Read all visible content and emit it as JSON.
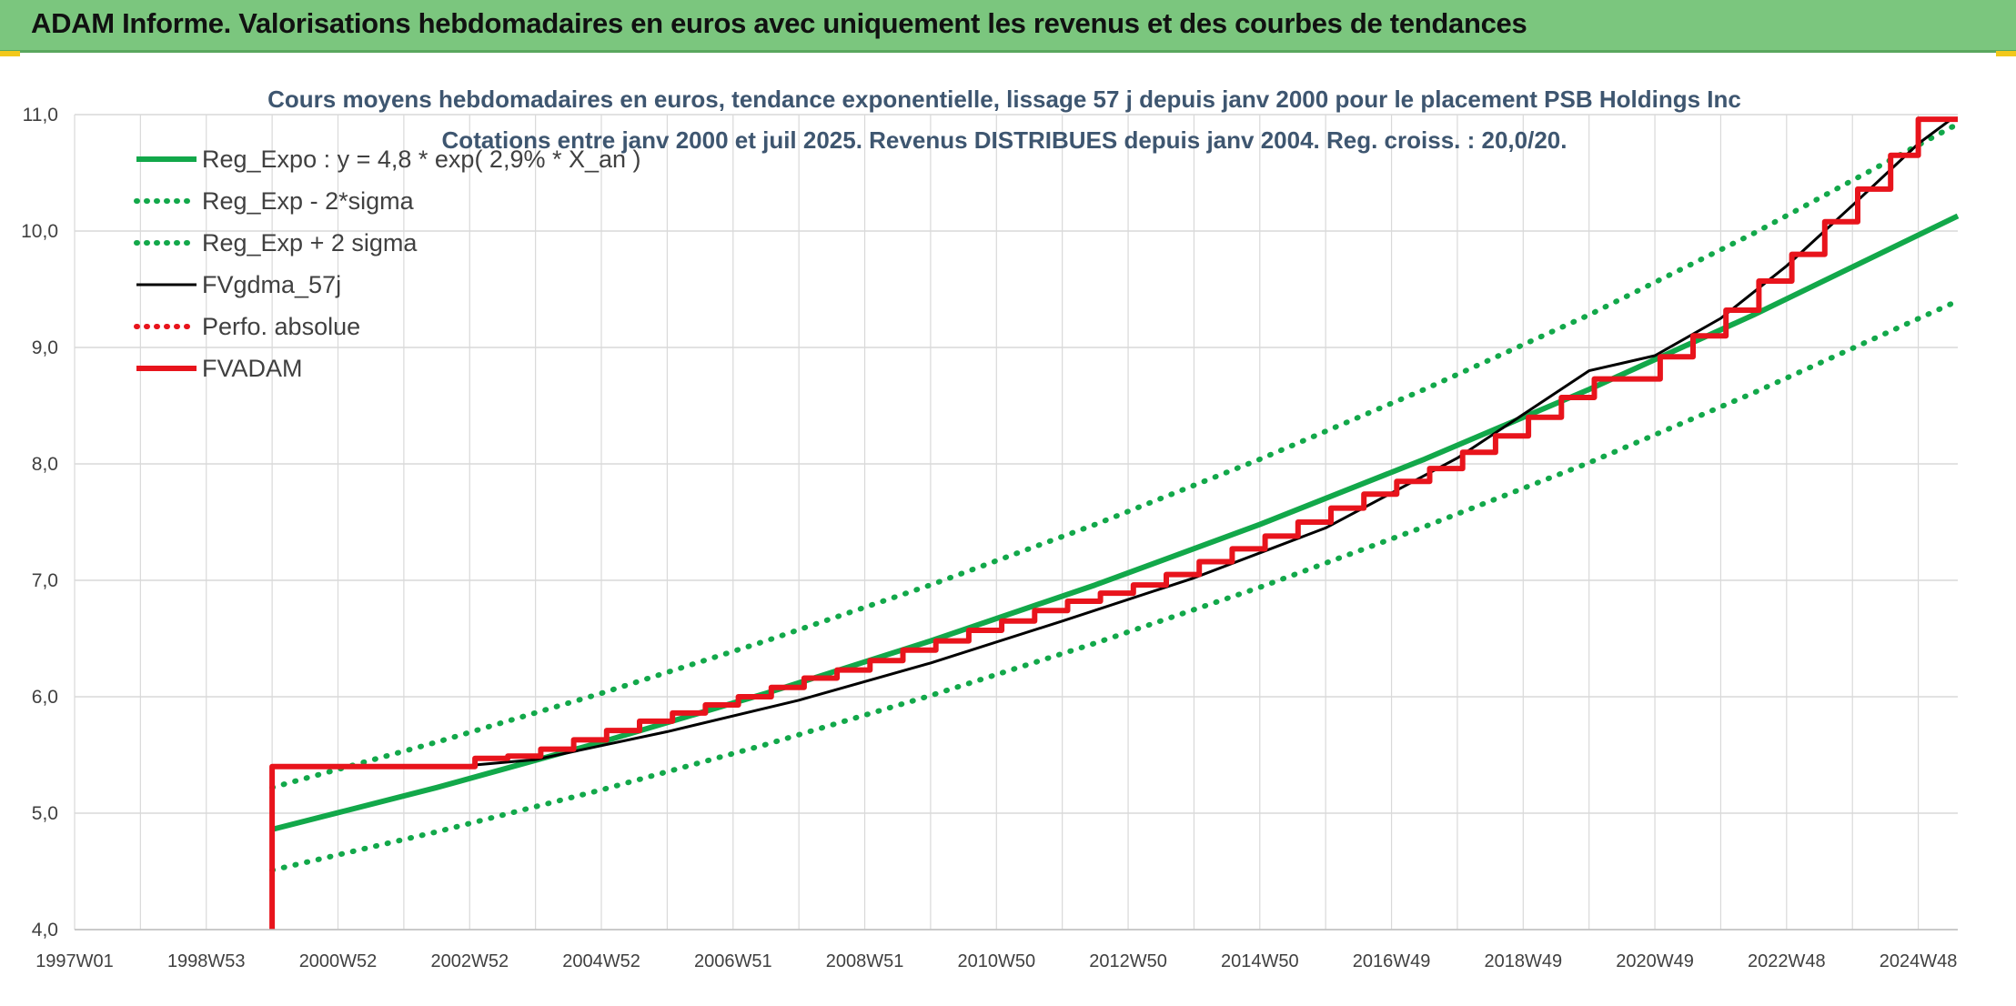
{
  "page": {
    "banner_title": "ADAM Informe. Valorisations hebdomadaires en euros avec uniquement les revenus et des courbes de tendances"
  },
  "colors": {
    "banner": "#7bc67e",
    "reg_green": "#12a84a",
    "fvgdma": "#000000",
    "fvadam": "#e8141c",
    "grid": "#d9d9d9"
  },
  "chart_data": {
    "type": "line",
    "title_line1": "Cours moyens hebdomadaires en euros, tendance exponentielle, lissage 57 j depuis janv 2000 pour le placement PSB Holdings Inc",
    "title_line2": "Cotations entre janv 2000 et juil 2025. Revenus DISTRIBUES depuis janv 2004. Reg. croiss. : 20,0/20.",
    "ylim": [
      4.0,
      11.0
    ],
    "y_ticks": [
      "4,0",
      "5,0",
      "6,0",
      "7,0",
      "8,0",
      "9,0",
      "10,0",
      "11,0"
    ],
    "xlim": [
      1997.0,
      2025.6
    ],
    "x_ticks": [
      {
        "label": "1997W01",
        "year": 1997.0
      },
      {
        "label": "1998W53",
        "year": 1999.0
      },
      {
        "label": "2000W52",
        "year": 2001.0
      },
      {
        "label": "2002W52",
        "year": 2003.0
      },
      {
        "label": "2004W52",
        "year": 2005.0
      },
      {
        "label": "2006W51",
        "year": 2007.0
      },
      {
        "label": "2008W51",
        "year": 2009.0
      },
      {
        "label": "2010W50",
        "year": 2011.0
      },
      {
        "label": "2012W50",
        "year": 2013.0
      },
      {
        "label": "2014W50",
        "year": 2015.0
      },
      {
        "label": "2016W49",
        "year": 2017.0
      },
      {
        "label": "2018W49",
        "year": 2019.0
      },
      {
        "label": "2020W49",
        "year": 2021.0
      },
      {
        "label": "2022W48",
        "year": 2023.0
      },
      {
        "label": "2024W48",
        "year": 2025.0
      }
    ],
    "grid": true,
    "legend_position": "top-left",
    "series": [
      {
        "name": "Reg_Expo : y = 4,8 * exp( 2,9% *  X_an )",
        "style": "solid-thick",
        "color": "#12a84a",
        "x": [
          2000.0,
          2002.5,
          2005.0,
          2007.5,
          2010.0,
          2012.5,
          2015.0,
          2017.5,
          2020.0,
          2022.5,
          2025.6
        ],
        "y": [
          4.86,
          5.22,
          5.61,
          6.03,
          6.48,
          6.96,
          7.48,
          8.04,
          8.64,
          9.28,
          10.13
        ]
      },
      {
        "name": "Reg_Exp - 2*sigma",
        "style": "dotted",
        "color": "#12a84a",
        "x": [
          2000.0,
          2002.5,
          2005.0,
          2007.5,
          2010.0,
          2012.5,
          2015.0,
          2017.5,
          2020.0,
          2022.5,
          2025.6
        ],
        "y": [
          4.51,
          4.84,
          5.2,
          5.59,
          6.01,
          6.46,
          6.94,
          7.46,
          8.01,
          8.61,
          9.4
        ]
      },
      {
        "name": "Reg_Exp + 2 sigma",
        "style": "dotted",
        "color": "#12a84a",
        "x": [
          2000.0,
          2002.5,
          2005.0,
          2007.5,
          2010.0,
          2012.5,
          2015.0,
          2017.5,
          2020.0,
          2022.5,
          2025.6
        ],
        "y": [
          5.22,
          5.61,
          6.03,
          6.48,
          6.96,
          7.48,
          8.04,
          8.64,
          9.28,
          9.98,
          10.92
        ]
      },
      {
        "name": "FVgdma_57j",
        "style": "solid-thin",
        "color": "#000000",
        "x": [
          2003.0,
          2004.0,
          2006.0,
          2008.0,
          2010.0,
          2012.0,
          2014.0,
          2016.0,
          2018.0,
          2020.0,
          2021.0,
          2022.0,
          2023.0,
          2024.0,
          2025.0,
          2025.5
        ],
        "y": [
          5.41,
          5.46,
          5.7,
          5.97,
          6.29,
          6.65,
          7.02,
          7.45,
          8.05,
          8.8,
          8.93,
          9.25,
          9.7,
          10.22,
          10.75,
          10.96
        ]
      },
      {
        "name": "Perfo. absolue",
        "style": "dotted",
        "color": "#e8141c",
        "x": [],
        "y": []
      },
      {
        "name": "FVADAM",
        "style": "step-thick",
        "color": "#e8141c",
        "x": [
          2000.0,
          2000.0,
          2003.08,
          2003.58,
          2004.08,
          2004.58,
          2005.08,
          2005.58,
          2006.08,
          2006.58,
          2007.08,
          2007.58,
          2008.08,
          2008.58,
          2009.08,
          2009.58,
          2010.08,
          2010.58,
          2011.08,
          2011.58,
          2012.08,
          2012.58,
          2013.08,
          2013.58,
          2014.08,
          2014.58,
          2015.08,
          2015.58,
          2016.08,
          2016.58,
          2017.08,
          2017.58,
          2018.08,
          2018.58,
          2019.08,
          2019.58,
          2020.08,
          2021.08,
          2021.58,
          2022.08,
          2022.58,
          2023.08,
          2023.58,
          2024.08,
          2024.58,
          2025.0,
          2025.6
        ],
        "y": [
          4.0,
          5.4,
          5.47,
          5.49,
          5.55,
          5.63,
          5.71,
          5.79,
          5.86,
          5.93,
          6.0,
          6.08,
          6.16,
          6.23,
          6.31,
          6.4,
          6.48,
          6.57,
          6.65,
          6.74,
          6.82,
          6.89,
          6.96,
          7.05,
          7.16,
          7.27,
          7.38,
          7.5,
          7.62,
          7.74,
          7.85,
          7.96,
          8.1,
          8.24,
          8.4,
          8.57,
          8.73,
          8.92,
          9.1,
          9.32,
          9.57,
          9.8,
          10.08,
          10.36,
          10.65,
          10.96,
          10.96
        ]
      }
    ]
  }
}
